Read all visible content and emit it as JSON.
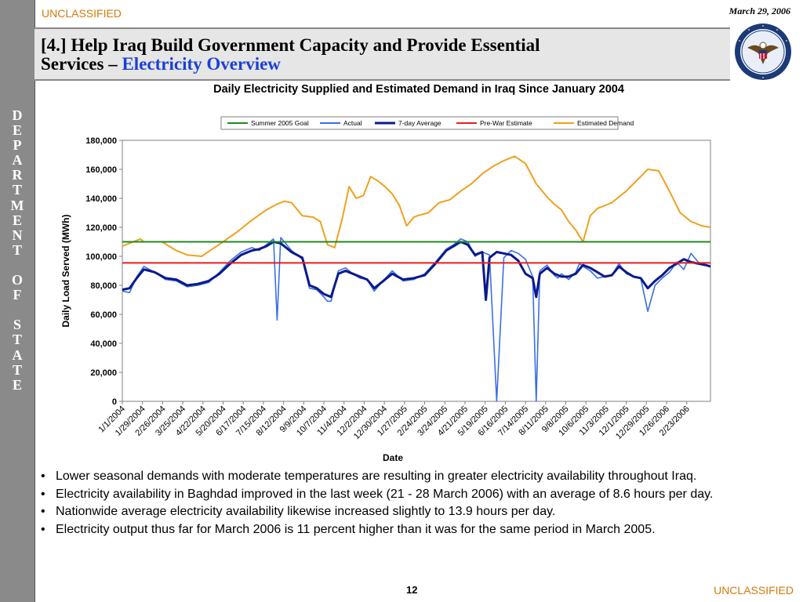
{
  "header": {
    "classification_top": "UNCLASSIFIED",
    "classification_bottom": "UNCLASSIFIED",
    "date": "March 29, 2006",
    "title_part1": "[4.] Help Iraq Build Government Capacity and Provide Essential",
    "title_part2": "Services – ",
    "title_accent": "Electricity Overview"
  },
  "sidebar": {
    "letters": [
      "D",
      "E",
      "P",
      "A",
      "R",
      "T",
      "M",
      "E",
      "N",
      "T",
      "",
      "O",
      "F",
      "",
      "S",
      "T",
      "A",
      "T",
      "E"
    ]
  },
  "seal": {
    "icon": "us-department-of-state-seal"
  },
  "colors": {
    "accent_blue": "#1a3fd6",
    "classification": "#d47a0a",
    "goal": "#1f8a1f",
    "actual": "#3a6fe8",
    "avg": "#0a1a8c",
    "prewar": "#e51e1e",
    "demand": "#f0a020"
  },
  "chart_data": {
    "type": "line",
    "title": "Daily Electricity Supplied and Estimated Demand in Iraq Since January 2004",
    "xlabel": "Date",
    "ylabel": "Daily Load Served (MWh)",
    "ylim": [
      0,
      180000
    ],
    "yticks": [
      "0",
      "20,000",
      "40,000",
      "60,000",
      "80,000",
      "100,000",
      "120,000",
      "140,000",
      "160,000",
      "180,000"
    ],
    "xticks": [
      "1/1/2004",
      "1/29/2004",
      "2/26/2004",
      "3/25/2004",
      "4/22/2004",
      "5/20/2004",
      "6/17/2004",
      "7/15/2004",
      "8/12/2004",
      "9/9/2004",
      "10/7/2004",
      "11/4/2004",
      "12/2/2004",
      "12/30/2004",
      "1/27/2005",
      "2/24/2005",
      "3/24/2005",
      "4/21/2005",
      "5/19/2005",
      "6/16/2005",
      "7/14/2005",
      "8/11/2005",
      "9/8/2005",
      "10/6/2005",
      "11/3/2005",
      "12/1/2005",
      "12/29/2005",
      "1/26/2006",
      "2/23/2006"
    ],
    "x_range_days": [
      0,
      817
    ],
    "legend": [
      "Summer 2005 Goal",
      "Actual",
      "7-day Average",
      "Pre-War Estimate",
      "Estimated Demand"
    ],
    "legend_placement": "top",
    "grid": false,
    "series": [
      {
        "name": "Summer 2005 Goal",
        "type": "constant",
        "value": 110000
      },
      {
        "name": "Pre-War Estimate",
        "type": "constant",
        "value": 95500
      },
      {
        "name": "Estimated Demand",
        "x": [
          0,
          15,
          25,
          30,
          55,
          75,
          90,
          110,
          125,
          140,
          160,
          180,
          200,
          215,
          225,
          235,
          250,
          265,
          275,
          285,
          295,
          305,
          315,
          325,
          335,
          345,
          355,
          365,
          375,
          385,
          395,
          405,
          410,
          425,
          440,
          455,
          470,
          485,
          500,
          515,
          530,
          545,
          560,
          575,
          590,
          600,
          610,
          620,
          630,
          640,
          650,
          660,
          670,
          680,
          690,
          700,
          710,
          720,
          730,
          745,
          760,
          775,
          790,
          805,
          817
        ],
        "values": [
          107000,
          110000,
          112000,
          110000,
          110000,
          104000,
          101000,
          100000,
          105000,
          110000,
          117000,
          125000,
          132000,
          136000,
          138000,
          137000,
          128000,
          127000,
          124000,
          108000,
          106000,
          125000,
          148000,
          140000,
          142000,
          155000,
          152000,
          148000,
          143000,
          135000,
          121000,
          127000,
          128000,
          130000,
          137000,
          139000,
          145000,
          150000,
          157000,
          162000,
          166000,
          169000,
          164000,
          150000,
          141000,
          136000,
          132000,
          124000,
          118000,
          110000,
          128000,
          133000,
          135000,
          137000,
          141000,
          145000,
          150000,
          155000,
          160000,
          159000,
          145000,
          130000,
          124000,
          121000,
          120000
        ]
      },
      {
        "name": "Actual",
        "x": [
          0,
          10,
          20,
          30,
          45,
          60,
          75,
          90,
          105,
          120,
          135,
          150,
          165,
          180,
          190,
          200,
          210,
          215,
          220,
          235,
          250,
          260,
          270,
          280,
          285,
          290,
          300,
          310,
          320,
          330,
          340,
          350,
          360,
          375,
          390,
          405,
          420,
          435,
          450,
          460,
          470,
          480,
          490,
          500,
          510,
          520,
          530,
          540,
          550,
          560,
          570,
          575,
          580,
          590,
          600,
          605,
          610,
          620,
          630,
          635,
          640,
          650,
          660,
          670,
          680,
          690,
          700,
          710,
          720,
          730,
          740,
          750,
          760,
          770,
          780,
          790,
          800,
          810,
          817
        ],
        "values": [
          76000,
          75000,
          86000,
          93000,
          89000,
          84000,
          83000,
          79000,
          80000,
          82000,
          89000,
          97000,
          103000,
          106000,
          104000,
          108000,
          112000,
          56000,
          113000,
          104000,
          98000,
          78000,
          77000,
          72000,
          69000,
          69000,
          90000,
          92000,
          88000,
          85000,
          84000,
          76000,
          82000,
          90000,
          83000,
          84000,
          88000,
          96000,
          105000,
          108000,
          112000,
          110000,
          100000,
          103000,
          101000,
          0,
          99000,
          104000,
          102000,
          98000,
          86000,
          0,
          90000,
          94000,
          87000,
          85000,
          88000,
          84000,
          89000,
          95000,
          93000,
          90000,
          85000,
          86000,
          87000,
          95000,
          88000,
          86000,
          85000,
          62000,
          80000,
          85000,
          89000,
          96000,
          91000,
          102000,
          96000,
          94000,
          93000
        ]
      },
      {
        "name": "7-day Average",
        "x": [
          0,
          10,
          20,
          30,
          45,
          60,
          75,
          90,
          105,
          120,
          135,
          150,
          165,
          180,
          190,
          200,
          210,
          220,
          235,
          250,
          260,
          270,
          280,
          290,
          300,
          310,
          320,
          330,
          340,
          350,
          360,
          375,
          390,
          405,
          420,
          435,
          450,
          460,
          470,
          480,
          490,
          500,
          505,
          510,
          520,
          530,
          540,
          550,
          560,
          570,
          575,
          580,
          590,
          600,
          610,
          620,
          630,
          640,
          650,
          660,
          670,
          680,
          690,
          700,
          710,
          720,
          730,
          740,
          750,
          760,
          770,
          780,
          790,
          800,
          810,
          817
        ],
        "values": [
          77000,
          78000,
          85000,
          91000,
          89000,
          85000,
          84000,
          80000,
          81000,
          83000,
          88000,
          95000,
          101000,
          104000,
          105000,
          107000,
          110000,
          109000,
          103000,
          99000,
          80000,
          78000,
          74000,
          72000,
          88000,
          90000,
          88000,
          86000,
          84000,
          78000,
          82000,
          88000,
          84000,
          85000,
          87000,
          95000,
          104000,
          107000,
          110000,
          108000,
          101000,
          103000,
          70000,
          99000,
          103000,
          102000,
          101000,
          97000,
          88000,
          85000,
          72000,
          88000,
          92000,
          88000,
          86000,
          86000,
          88000,
          94000,
          92000,
          89000,
          86000,
          87000,
          93000,
          89000,
          86000,
          85000,
          78000,
          83000,
          87000,
          92000,
          95000,
          98000,
          96000,
          95000,
          94000,
          93000
        ]
      }
    ]
  },
  "bullets": [
    "Lower seasonal demands with moderate temperatures are resulting in greater electricity availability throughout Iraq.",
    "Electricity availability in Baghdad improved in the last week (21 - 28 March 2006) with an average of 8.6 hours per day.",
    "Nationwide average electricity availability likewise increased slightly to 13.9 hours per day.",
    "Electricity output thus far for March 2006 is 11 percent higher than it was for the same period in March 2005."
  ],
  "footer": {
    "page_number": "12"
  }
}
